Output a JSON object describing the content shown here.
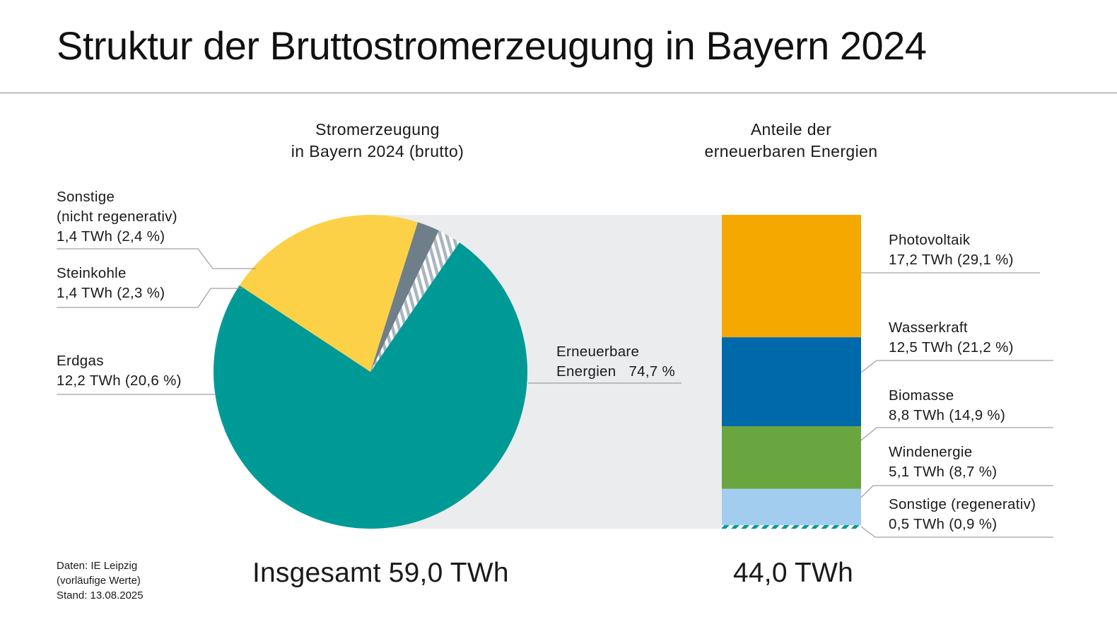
{
  "title": "Struktur der Bruttostromerzeugung in Bayern 2024",
  "colors": {
    "erneuerbar": "#009a96",
    "erdgas": "#fdd147",
    "steinkohle": "#6e7f8a",
    "sonstige_hatch": "#a9b6c0",
    "photovoltaik": "#f5a800",
    "wasserkraft": "#0069aa",
    "biomasse": "#6aa640",
    "windenergie": "#a2cdee",
    "sonstige_reg": "#009a96",
    "band": "#ebeced",
    "leader": "#8a8a8a"
  },
  "left_panel": {
    "subtitle_line1": "Stromerzeugung",
    "subtitle_line2": "in Bayern 2024 (brutto)",
    "total": "Insgesamt 59,0 TWh",
    "labels": {
      "sonstige_l1": "Sonstige",
      "sonstige_l2": "(nicht regenerativ)",
      "sonstige_l3": "1,4 TWh (2,4 %)",
      "steinkohle_l1": "Steinkohle",
      "steinkohle_l2": "1,4 TWh (2,3 %)",
      "erdgas_l1": "Erdgas",
      "erdgas_l2": "12,2 TWh (20,6 %)",
      "erneuerbar_l1": "Erneuerbare",
      "erneuerbar_l2": "Energien   74,7 %"
    }
  },
  "right_panel": {
    "subtitle_line1": "Anteile der",
    "subtitle_line2": "erneuerbaren Energien",
    "total": "44,0 TWh",
    "labels": {
      "pv_l1": "Photovoltaik",
      "pv_l2": "17,2 TWh (29,1 %)",
      "wasser_l1": "Wasserkraft",
      "wasser_l2": "12,5 TWh (21,2 %)",
      "bio_l1": "Biomasse",
      "bio_l2": "8,8 TWh (14,9 %)",
      "wind_l1": "Windenergie",
      "wind_l2": "5,1 TWh (8,7 %)",
      "sreg_l1": "Sonstige (regenerativ)",
      "sreg_l2": "0,5 TWh (0,9 %)"
    }
  },
  "source": {
    "line1": "Daten: IE Leipzig",
    "line2": "(vorläufige Werte)",
    "line3": "Stand: 13.08.2025"
  },
  "chart_data": [
    {
      "type": "pie",
      "title": "Stromerzeugung in Bayern 2024 (brutto)",
      "total_twh": 59.0,
      "slices": [
        {
          "name": "Erneuerbare Energien",
          "percent": 74.7
        },
        {
          "name": "Erdgas",
          "twh": 12.2,
          "percent": 20.6
        },
        {
          "name": "Steinkohle",
          "twh": 1.4,
          "percent": 2.3
        },
        {
          "name": "Sonstige (nicht regenerativ)",
          "twh": 1.4,
          "percent": 2.4
        }
      ]
    },
    {
      "type": "bar",
      "stacked": true,
      "title": "Anteile der erneuerbaren Energien",
      "total_twh": 44.0,
      "segments": [
        {
          "name": "Photovoltaik",
          "twh": 17.2,
          "percent": 29.1
        },
        {
          "name": "Wasserkraft",
          "twh": 12.5,
          "percent": 21.2
        },
        {
          "name": "Biomasse",
          "twh": 8.8,
          "percent": 14.9
        },
        {
          "name": "Windenergie",
          "twh": 5.1,
          "percent": 8.7
        },
        {
          "name": "Sonstige (regenerativ)",
          "twh": 0.5,
          "percent": 0.9
        }
      ]
    }
  ]
}
